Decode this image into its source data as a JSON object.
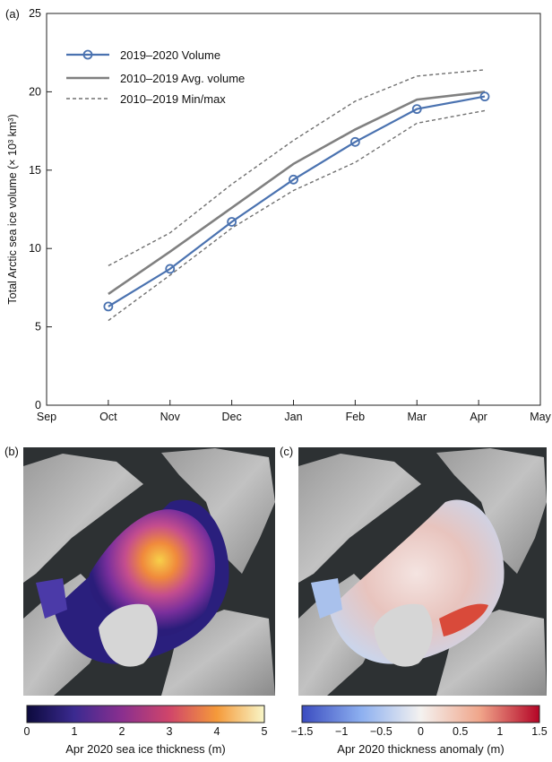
{
  "panels": {
    "a": "(a)",
    "b": "(b)",
    "c": "(c)"
  },
  "chart_data": {
    "type": "line",
    "title": "",
    "ylabel": "Total Arctic sea ice volume (× 10³ km³)",
    "xlabel": "",
    "categories": [
      "Sep",
      "Oct",
      "Nov",
      "Dec",
      "Jan",
      "Feb",
      "Mar",
      "Apr",
      "May"
    ],
    "x_tick_positions": [
      0,
      1,
      2,
      3,
      4,
      5,
      6,
      7,
      8
    ],
    "ylim": [
      0,
      25
    ],
    "yticks": [
      0,
      5,
      10,
      15,
      20,
      25
    ],
    "xlim": [
      0,
      8
    ],
    "grid": false,
    "legend_position": "top-left",
    "series": [
      {
        "name": "2019–2020 Volume",
        "color": "#4a72b0",
        "style": "solid-markers",
        "x": [
          1,
          2,
          3,
          4,
          5,
          6,
          7.1
        ],
        "values": [
          6.3,
          8.7,
          11.7,
          14.4,
          16.8,
          18.9,
          19.7
        ]
      },
      {
        "name": "2010–2019 Avg. volume",
        "color": "#808080",
        "style": "solid",
        "x": [
          1,
          2,
          3,
          4,
          5,
          6,
          7.1
        ],
        "values": [
          7.1,
          9.8,
          12.6,
          15.4,
          17.6,
          19.5,
          20.0
        ]
      },
      {
        "name": "2010–2019 Min/max",
        "color": "#707070",
        "style": "dashed",
        "x": [
          1,
          2,
          3,
          4,
          5,
          6,
          7.1
        ],
        "values": [
          8.9,
          11.0,
          14.1,
          16.9,
          19.4,
          21.0,
          21.4
        ]
      },
      {
        "name": "",
        "color": "#707070",
        "style": "dashed",
        "x": [
          1,
          2,
          3,
          4,
          5,
          6,
          7.1
        ],
        "values": [
          5.4,
          8.3,
          11.3,
          13.7,
          15.5,
          18.0,
          18.8
        ]
      }
    ]
  },
  "colorbars": [
    {
      "label": "Apr 2020 sea ice thickness (m)",
      "ticks": [
        "0",
        "1",
        "2",
        "3",
        "4",
        "5"
      ],
      "colormap": "thermal"
    },
    {
      "label": "Apr 2020 thickness anomaly (m)",
      "ticks": [
        "−1.5",
        "−1",
        "−0.5",
        "0",
        "0.5",
        "1",
        "1.5"
      ],
      "colormap": "diverging"
    }
  ]
}
